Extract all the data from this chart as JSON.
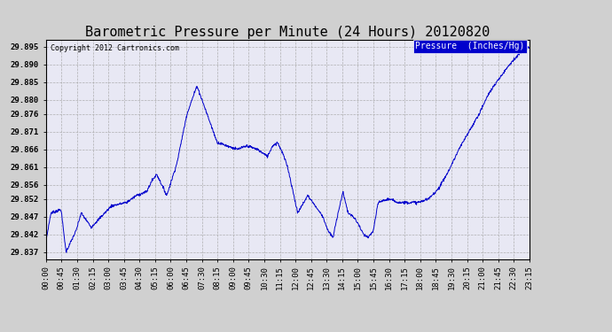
{
  "title": "Barometric Pressure per Minute (24 Hours) 20120820",
  "copyright": "Copyright 2012 Cartronics.com",
  "legend_label": "Pressure  (Inches/Hg)",
  "y_ticks": [
    29.837,
    29.842,
    29.847,
    29.852,
    29.856,
    29.861,
    29.866,
    29.871,
    29.876,
    29.88,
    29.885,
    29.89,
    29.895
  ],
  "ylim": [
    29.835,
    29.897
  ],
  "x_tick_labels": [
    "00:00",
    "00:45",
    "01:30",
    "02:15",
    "03:00",
    "03:45",
    "04:30",
    "05:15",
    "06:00",
    "06:45",
    "07:30",
    "08:15",
    "09:00",
    "09:45",
    "10:30",
    "11:15",
    "12:00",
    "12:45",
    "13:30",
    "14:15",
    "15:00",
    "15:45",
    "16:30",
    "17:15",
    "18:00",
    "18:45",
    "19:30",
    "20:15",
    "21:00",
    "21:45",
    "22:30",
    "23:15"
  ],
  "line_color": "#0000cc",
  "background_color": "#d0d0d0",
  "plot_bg_color": "#e8e8f4",
  "grid_color": "#aaaaaa",
  "title_fontsize": 11,
  "tick_fontsize": 6.5,
  "legend_bg": "#0000cc",
  "legend_fg": "#ffffff",
  "key_times": [
    0,
    15,
    45,
    60,
    90,
    105,
    135,
    165,
    195,
    240,
    270,
    300,
    315,
    330,
    345,
    360,
    390,
    420,
    450,
    480,
    510,
    540,
    570,
    600,
    630,
    660,
    675,
    690,
    705,
    720,
    750,
    780,
    810,
    825,
    840,
    855,
    870,
    885,
    900,
    915,
    930,
    945,
    960,
    975,
    990,
    1020,
    1050,
    1080,
    1110,
    1140,
    1170,
    1200,
    1230,
    1260,
    1290,
    1320,
    1350,
    1380,
    1410,
    1440
  ],
  "key_values": [
    29.84,
    29.848,
    29.849,
    29.837,
    29.843,
    29.848,
    29.844,
    29.847,
    29.85,
    29.851,
    29.853,
    29.854,
    29.857,
    29.859,
    29.856,
    29.853,
    29.862,
    29.876,
    29.884,
    29.876,
    29.868,
    29.867,
    29.866,
    29.867,
    29.866,
    29.864,
    29.867,
    29.868,
    29.865,
    29.861,
    29.848,
    29.853,
    29.849,
    29.847,
    29.843,
    29.841,
    29.848,
    29.854,
    29.848,
    29.847,
    29.845,
    29.842,
    29.841,
    29.843,
    29.851,
    29.852,
    29.851,
    29.851,
    29.851,
    29.852,
    29.855,
    29.86,
    29.866,
    29.871,
    29.876,
    29.882,
    29.886,
    29.89,
    29.893,
    29.895
  ]
}
